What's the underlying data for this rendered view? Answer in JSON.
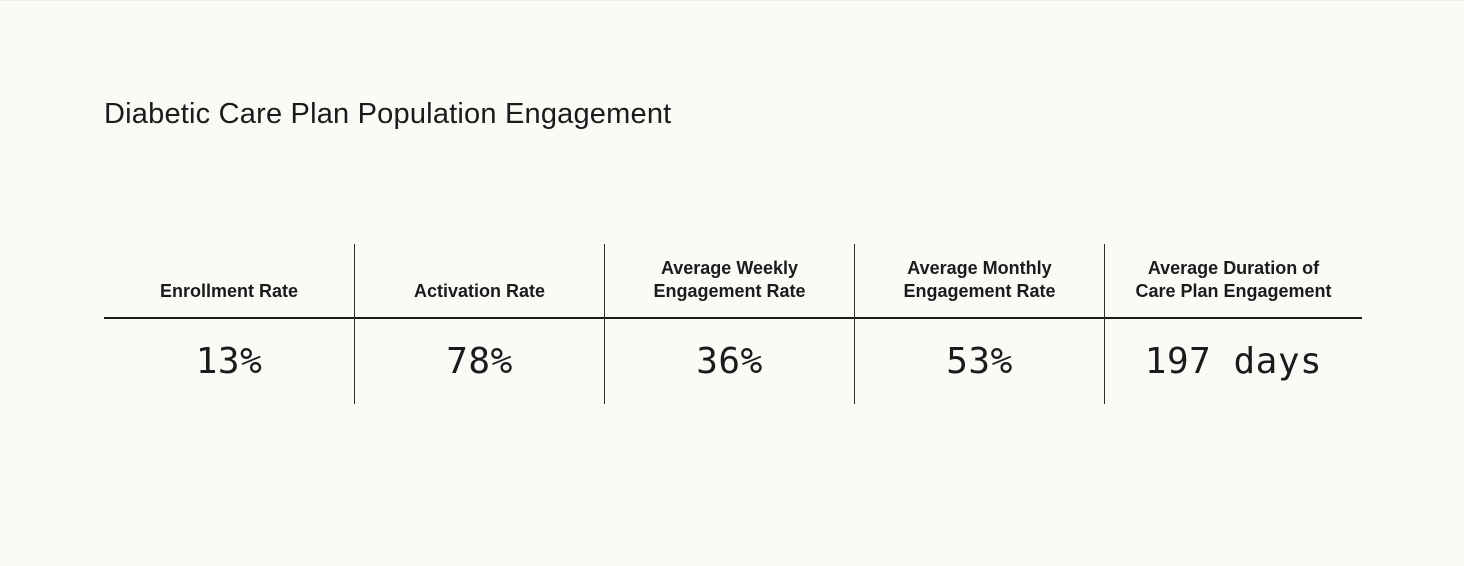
{
  "page": {
    "title": "Diabetic Care Plan Population Engagement"
  },
  "theme": {
    "background_color": "#FBFAF7",
    "text_color": "#1B1B1B",
    "header_rule_color": "#1B1B1B",
    "column_divider_color": "#2E2E2E"
  },
  "metrics_table": {
    "columns": [
      {
        "label": "Enrollment Rate",
        "value": "13%"
      },
      {
        "label": "Activation Rate",
        "value": "78%"
      },
      {
        "label": "Average Weekly\nEngagement Rate",
        "value": "36%"
      },
      {
        "label": "Average Monthly\nEngagement Rate",
        "value": "53%"
      },
      {
        "label": "Average Duration of\nCare Plan Engagement",
        "value": "197 days"
      }
    ]
  },
  "chart_data": {
    "type": "table",
    "title": "Diabetic Care Plan Population Engagement",
    "columns": [
      "Enrollment Rate",
      "Activation Rate",
      "Average Weekly Engagement Rate",
      "Average Monthly Engagement Rate",
      "Average Duration of Care Plan Engagement"
    ],
    "rows": [
      [
        "13%",
        "78%",
        "36%",
        "53%",
        "197 days"
      ]
    ],
    "values": {
      "enrollment_rate_pct": 13,
      "activation_rate_pct": 78,
      "average_weekly_engagement_rate_pct": 36,
      "average_monthly_engagement_rate_pct": 53,
      "average_duration_of_care_plan_engagement_days": 197
    }
  }
}
